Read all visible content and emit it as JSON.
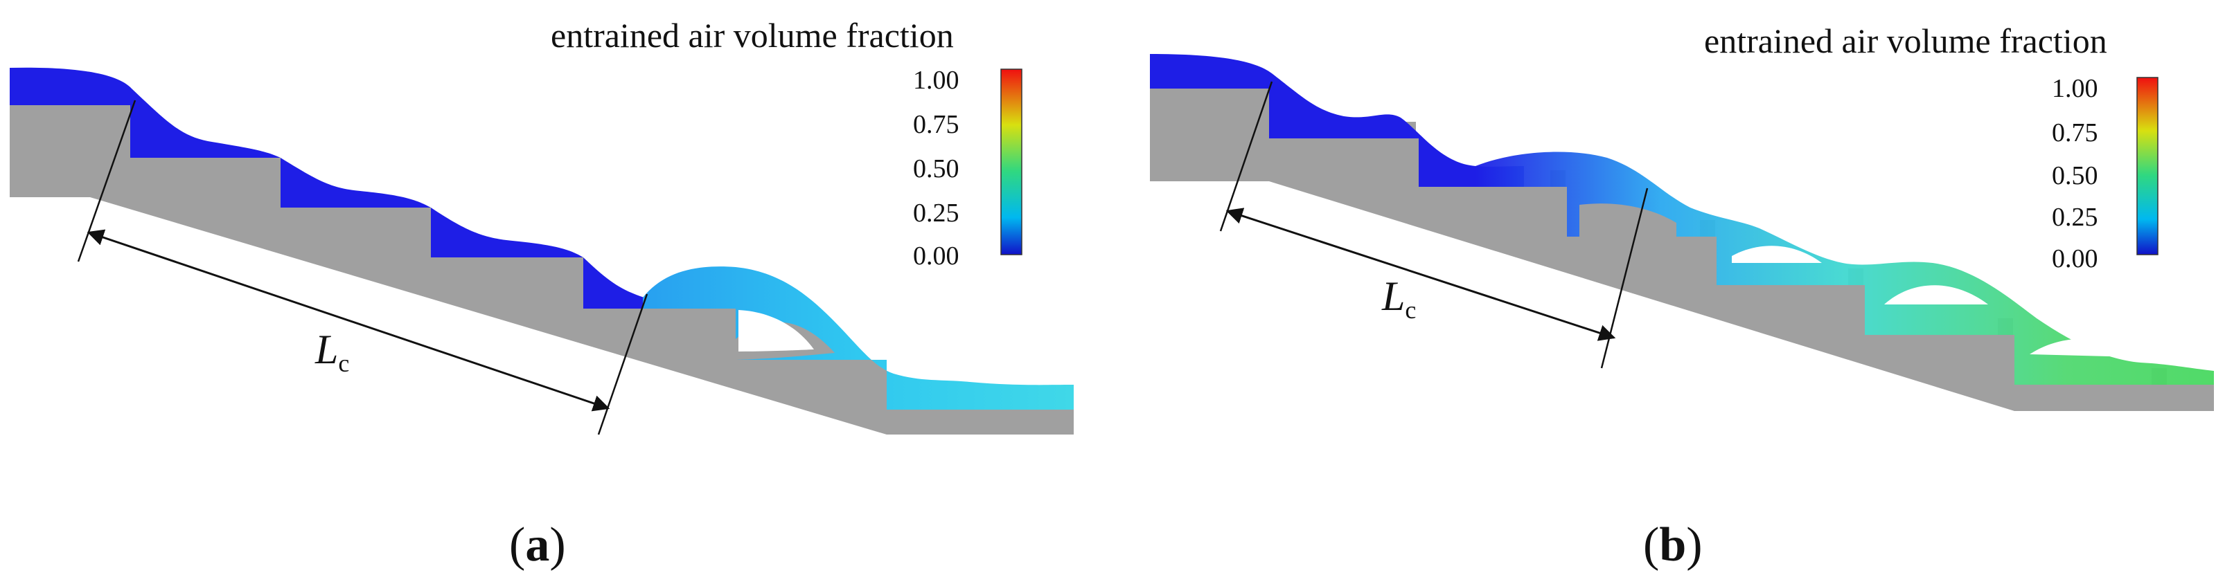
{
  "colorbar": {
    "title": "entrained air volume fraction",
    "ticks": [
      "1.00",
      "0.75",
      "0.50",
      "0.25",
      "0.00"
    ],
    "stops": [
      "#1010c8",
      "#00c8f0",
      "#30d870",
      "#d8e010",
      "#f01010"
    ]
  },
  "length_label": {
    "main": "L",
    "sub": "c"
  },
  "panels": [
    {
      "paren_open": "(",
      "letter": "a",
      "paren_close": ")"
    },
    {
      "paren_open": "(",
      "letter": "b",
      "paren_close": ")"
    }
  ],
  "colors": {
    "concrete": "#a0a0a0",
    "water_dense": "#1e1ee6",
    "water_aerated": "#40d0ee"
  }
}
